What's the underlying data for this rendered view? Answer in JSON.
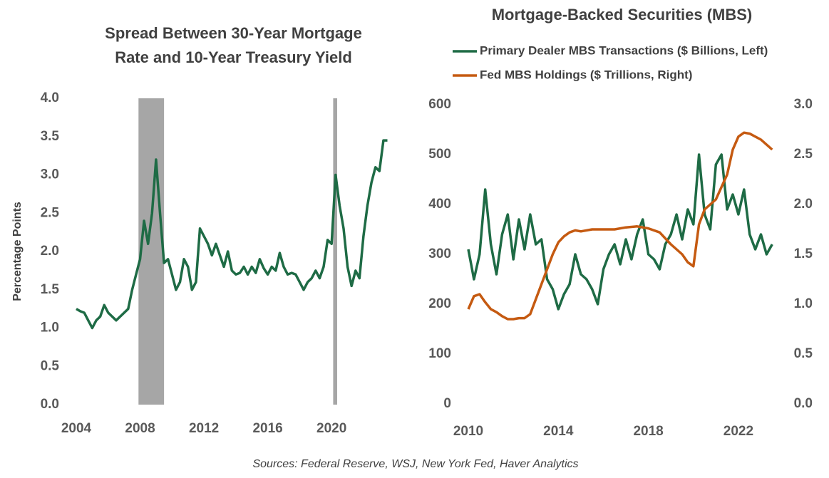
{
  "chart_data": [
    {
      "type": "line",
      "title": [
        "Spread Between 30-Year Mortgage",
        "Rate and 10-Year Treasury Yield"
      ],
      "y_label": "Percentage Points",
      "xlim": [
        2004,
        2023.7
      ],
      "xticks": [
        2004,
        2008,
        2012,
        2016,
        2020
      ],
      "ylim": [
        0,
        4
      ],
      "yticks": [
        {
          "value": 0,
          "label": "0.0"
        },
        0.5,
        {
          "value": 1,
          "label": "1.0"
        },
        1.5,
        {
          "value": 2,
          "label": "2.0"
        },
        2.5,
        {
          "value": 3,
          "label": "3.0"
        },
        3.5,
        {
          "value": 4,
          "label": "4.0"
        }
      ],
      "shaded_ranges": [
        [
          2007.9,
          2009.5
        ],
        [
          2020.1,
          2020.35
        ]
      ],
      "shade_color": "#a6a6a6",
      "series": [
        {
          "color": "#1e6b45",
          "x": [
            2004,
            2004.25,
            2004.5,
            2004.75,
            2005,
            2005.25,
            2005.5,
            2005.75,
            2006,
            2006.25,
            2006.5,
            2006.75,
            2007,
            2007.25,
            2007.5,
            2007.75,
            2008,
            2008.25,
            2008.5,
            2008.75,
            2009,
            2009.25,
            2009.5,
            2009.75,
            2010,
            2010.25,
            2010.5,
            2010.75,
            2011,
            2011.25,
            2011.5,
            2011.75,
            2012,
            2012.25,
            2012.5,
            2012.75,
            2013,
            2013.25,
            2013.5,
            2013.75,
            2014,
            2014.25,
            2014.5,
            2014.75,
            2015,
            2015.25,
            2015.5,
            2015.75,
            2016,
            2016.25,
            2016.5,
            2016.75,
            2017,
            2017.25,
            2017.5,
            2017.75,
            2018,
            2018.25,
            2018.5,
            2018.75,
            2019,
            2019.25,
            2019.5,
            2019.75,
            2020,
            2020.25,
            2020.5,
            2020.75,
            2021,
            2021.25,
            2021.5,
            2021.75,
            2022,
            2022.25,
            2022.5,
            2022.75,
            2023,
            2023.25,
            2023.5
          ],
          "values": [
            1.25,
            1.22,
            1.2,
            1.1,
            1.0,
            1.1,
            1.15,
            1.3,
            1.2,
            1.15,
            1.1,
            1.15,
            1.2,
            1.25,
            1.5,
            1.7,
            1.9,
            2.4,
            2.1,
            2.5,
            3.2,
            2.5,
            1.85,
            1.9,
            1.7,
            1.5,
            1.6,
            1.9,
            1.8,
            1.5,
            1.6,
            2.3,
            2.2,
            2.1,
            1.95,
            2.1,
            1.95,
            1.8,
            2.0,
            1.75,
            1.7,
            1.72,
            1.8,
            1.7,
            1.8,
            1.72,
            1.9,
            1.78,
            1.7,
            1.8,
            1.75,
            1.98,
            1.8,
            1.7,
            1.72,
            1.7,
            1.6,
            1.5,
            1.6,
            1.65,
            1.75,
            1.65,
            1.8,
            2.15,
            2.1,
            3.0,
            2.6,
            2.3,
            1.8,
            1.55,
            1.75,
            1.65,
            2.2,
            2.6,
            2.9,
            3.1,
            3.05,
            3.45,
            3.45
          ]
        }
      ]
    },
    {
      "type": "line",
      "title": [
        "Mortgage-Backed  Securities (MBS)"
      ],
      "xlim": [
        2010,
        2023.65
      ],
      "xticks": [
        2010,
        2014,
        2018,
        2022
      ],
      "ylim": [
        0,
        600
      ],
      "yticks": [
        0,
        100,
        200,
        300,
        400,
        500,
        600
      ],
      "y2lim": [
        0,
        3
      ],
      "y2ticks": [
        {
          "value": 0,
          "label": "0.0"
        },
        0.5,
        {
          "value": 1,
          "label": "1.0"
        },
        1.5,
        {
          "value": 2,
          "label": "2.0"
        },
        2.5,
        {
          "value": 3,
          "label": "3.0"
        }
      ],
      "series": [
        {
          "name": "Primary Dealer MBS Transactions ($ Billions, Left)",
          "color": "#1e6b45",
          "x": [
            2010,
            2010.25,
            2010.5,
            2010.75,
            2011,
            2011.25,
            2011.5,
            2011.75,
            2012,
            2012.25,
            2012.5,
            2012.75,
            2013,
            2013.25,
            2013.5,
            2013.75,
            2014,
            2014.25,
            2014.5,
            2014.75,
            2015,
            2015.25,
            2015.5,
            2015.75,
            2016,
            2016.25,
            2016.5,
            2016.75,
            2017,
            2017.25,
            2017.5,
            2017.75,
            2018,
            2018.25,
            2018.5,
            2018.75,
            2019,
            2019.25,
            2019.5,
            2019.75,
            2020,
            2020.25,
            2020.5,
            2020.75,
            2021,
            2021.25,
            2021.5,
            2021.75,
            2022,
            2022.25,
            2022.5,
            2022.75,
            2023,
            2023.25,
            2023.5
          ],
          "values": [
            310,
            250,
            300,
            430,
            320,
            260,
            340,
            380,
            290,
            370,
            310,
            380,
            320,
            330,
            250,
            230,
            190,
            220,
            240,
            300,
            260,
            250,
            230,
            200,
            270,
            300,
            320,
            280,
            330,
            290,
            340,
            370,
            300,
            290,
            270,
            320,
            340,
            380,
            330,
            390,
            360,
            500,
            380,
            350,
            480,
            500,
            390,
            420,
            380,
            430,
            340,
            310,
            340,
            300,
            320
          ]
        },
        {
          "name": "Fed MBS Holdings ($ Trillions, Right)",
          "color": "#c55a11",
          "axis": "y2",
          "x": [
            2010,
            2010.25,
            2010.5,
            2010.75,
            2011,
            2011.25,
            2011.5,
            2011.75,
            2012,
            2012.25,
            2012.5,
            2012.75,
            2013,
            2013.25,
            2013.5,
            2013.75,
            2014,
            2014.25,
            2014.5,
            2014.75,
            2015,
            2015.5,
            2016,
            2016.5,
            2017,
            2017.5,
            2018,
            2018.5,
            2019,
            2019.5,
            2019.75,
            2020,
            2020.25,
            2020.5,
            2021,
            2021.5,
            2021.75,
            2022,
            2022.25,
            2022.5,
            2023,
            2023.5
          ],
          "values": [
            0.95,
            1.08,
            1.1,
            1.02,
            0.95,
            0.92,
            0.88,
            0.85,
            0.85,
            0.86,
            0.86,
            0.9,
            1.05,
            1.2,
            1.35,
            1.5,
            1.62,
            1.68,
            1.72,
            1.74,
            1.73,
            1.75,
            1.75,
            1.75,
            1.77,
            1.78,
            1.76,
            1.72,
            1.6,
            1.5,
            1.42,
            1.38,
            1.8,
            1.95,
            2.05,
            2.3,
            2.55,
            2.68,
            2.72,
            2.71,
            2.65,
            2.55
          ]
        }
      ]
    }
  ],
  "source": "Sources: Federal Reserve, WSJ, New York Fed, Haver Analytics"
}
